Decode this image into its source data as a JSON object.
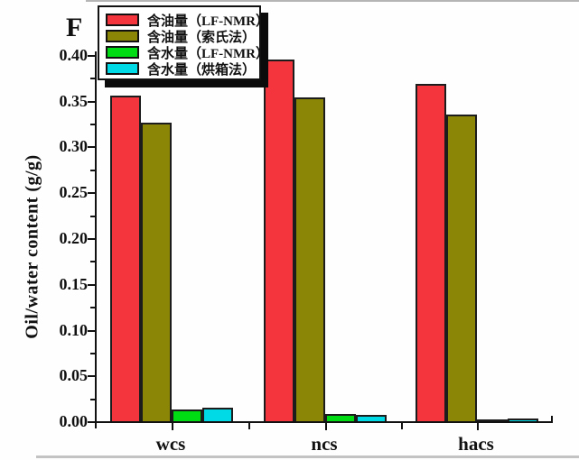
{
  "figure_label": "F",
  "chart_data": {
    "type": "bar",
    "title": "",
    "xlabel": "",
    "ylabel": "Oil/water content (g/g)",
    "categories": [
      "wcs",
      "ncs",
      "hacs"
    ],
    "series": [
      {
        "name": "含油量（LF-NMR）",
        "color": "#f5353d",
        "values": [
          0.356,
          0.395,
          0.368
        ]
      },
      {
        "name": "含油量（索氏法）",
        "color": "#8b8606",
        "values": [
          0.326,
          0.354,
          0.335
        ]
      },
      {
        "name": "含水量（LF-NMR）",
        "color": "#00dc14",
        "values": [
          0.013,
          0.008,
          0.002
        ]
      },
      {
        "name": "含水量（烘箱法）",
        "color": "#00d9e6",
        "values": [
          0.015,
          0.007,
          0.003
        ]
      }
    ],
    "ylim": [
      0.0,
      0.4
    ],
    "ytick_step": 0.05,
    "ytick_labels": [
      "0.00",
      "0.05",
      "0.10",
      "0.15",
      "0.20",
      "0.25",
      "0.30",
      "0.35",
      "0.40"
    ],
    "grid": false,
    "legend_position": "top-left",
    "bar_outline_color": "#1c1c1c"
  }
}
